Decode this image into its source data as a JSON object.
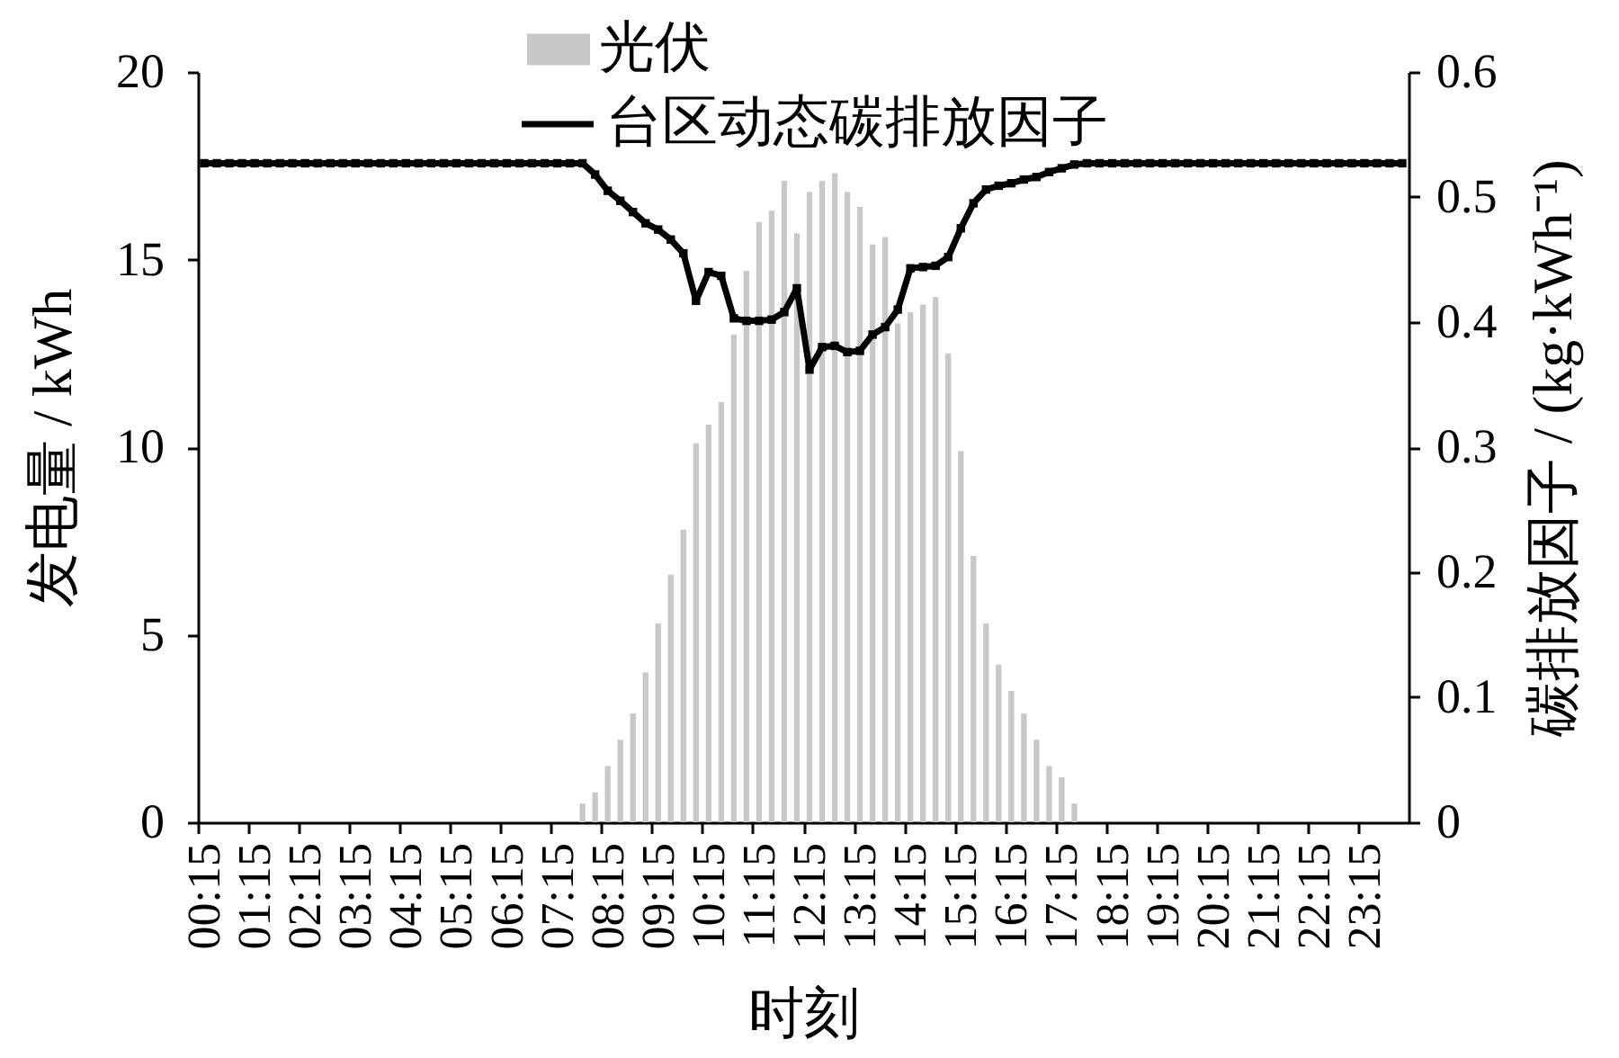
{
  "chart_data": {
    "type": "bar",
    "categories": [
      "00:15",
      null,
      null,
      null,
      "01:15",
      null,
      null,
      null,
      "02:15",
      null,
      null,
      null,
      "03:15",
      null,
      null,
      null,
      "04:15",
      null,
      null,
      null,
      "05:15",
      null,
      null,
      null,
      "06:15",
      null,
      null,
      null,
      "07:15",
      null,
      null,
      null,
      "08:15",
      null,
      null,
      null,
      "09:15",
      null,
      null,
      null,
      "10:15",
      null,
      null,
      null,
      "11:15",
      null,
      null,
      null,
      "12:15",
      null,
      null,
      null,
      "13:15",
      null,
      null,
      null,
      "14:15",
      null,
      null,
      null,
      "15:15",
      null,
      null,
      null,
      "16:15",
      null,
      null,
      null,
      "17:15",
      null,
      null,
      null,
      "18:15",
      null,
      null,
      null,
      "19:15",
      null,
      null,
      null,
      "20:15",
      null,
      null,
      null,
      "21:15",
      null,
      null,
      null,
      "22:15",
      null,
      null,
      null,
      "23:15",
      null,
      null,
      null
    ],
    "series": [
      {
        "name": "光伏",
        "color": "#c8c8c8",
        "values": [
          0,
          0,
          0,
          0,
          0,
          0,
          0,
          0,
          0,
          0,
          0,
          0,
          0,
          0,
          0,
          0,
          0,
          0,
          0,
          0,
          0,
          0,
          0,
          0,
          0,
          0,
          0,
          0,
          0,
          0,
          0.5,
          0.8,
          1.5,
          2.2,
          2.9,
          4.0,
          5.3,
          6.6,
          7.8,
          10.1,
          10.6,
          11.2,
          13.0,
          14.7,
          16.0,
          16.3,
          17.1,
          15.7,
          16.8,
          17.1,
          17.3,
          16.8,
          16.4,
          15.4,
          15.6,
          13.3,
          13.6,
          13.8,
          14.0,
          12.5,
          9.9,
          7.1,
          5.3,
          4.2,
          3.5,
          2.9,
          2.2,
          1.5,
          1.2,
          0.5,
          0,
          0,
          0,
          0,
          0,
          0,
          0,
          0,
          0,
          0,
          0,
          0,
          0,
          0,
          0,
          0,
          0,
          0,
          0,
          0,
          0,
          0,
          0,
          0,
          0,
          0
        ]
      },
      {
        "name": "台区动态碳排放因子",
        "type": "line",
        "axis": "y2",
        "color": "#000000",
        "values": [
          0.527,
          0.527,
          0.527,
          0.527,
          0.527,
          0.527,
          0.527,
          0.527,
          0.527,
          0.527,
          0.527,
          0.527,
          0.527,
          0.527,
          0.527,
          0.527,
          0.527,
          0.527,
          0.527,
          0.527,
          0.527,
          0.527,
          0.527,
          0.527,
          0.527,
          0.527,
          0.527,
          0.527,
          0.527,
          0.527,
          0.527,
          0.518,
          0.505,
          0.497,
          0.488,
          0.479,
          0.474,
          0.466,
          0.455,
          0.417,
          0.44,
          0.437,
          0.403,
          0.401,
          0.401,
          0.402,
          0.408,
          0.427,
          0.362,
          0.38,
          0.381,
          0.376,
          0.377,
          0.39,
          0.396,
          0.41,
          0.443,
          0.444,
          0.445,
          0.452,
          0.475,
          0.495,
          0.506,
          0.509,
          0.511,
          0.514,
          0.516,
          0.52,
          0.523,
          0.526,
          0.527,
          0.527,
          0.527,
          0.527,
          0.527,
          0.527,
          0.527,
          0.527,
          0.527,
          0.527,
          0.527,
          0.527,
          0.527,
          0.527,
          0.527,
          0.527,
          0.527,
          0.527,
          0.527,
          0.527,
          0.527,
          0.527,
          0.527,
          0.527,
          0.527,
          0.527
        ]
      }
    ],
    "xlabel": "时刻",
    "ylabel": "发电量 / kWh",
    "y2label": "碳排放因子 / (kg·kWh⁻¹)",
    "ylim": [
      0,
      20
    ],
    "yticks": [
      0,
      5,
      10,
      15,
      20
    ],
    "y2lim": [
      0,
      0.6
    ],
    "y2ticks": [
      0,
      0.1,
      0.2,
      0.3,
      0.4,
      0.5,
      0.6
    ],
    "legend": "top",
    "marker": "square",
    "line_style": "solid"
  }
}
